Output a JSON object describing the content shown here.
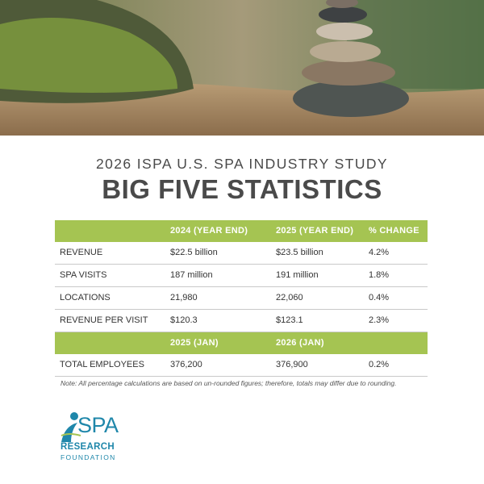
{
  "header": {
    "subtitle": "2026 ISPA U.S. SPA INDUSTRY STUDY",
    "title": "BIG FIVE STATISTICS"
  },
  "table": {
    "header": [
      "2024 (YEAR END)",
      "2025 (YEAR END)",
      "% CHANGE"
    ],
    "rows": [
      [
        "REVENUE",
        "$22.5 billion",
        "$23.5 billion",
        "4.2%"
      ],
      [
        "SPA VISITS",
        "187 million",
        "191 million",
        "1.8%"
      ],
      [
        "LOCATIONS",
        "21,980",
        "22,060",
        "0.4%"
      ],
      [
        "REVENUE PER VISIT",
        "$120.3",
        "$123.1",
        "2.3%"
      ]
    ],
    "header2": [
      "2025 (JAN)",
      "2026 (JAN)"
    ],
    "rows2": [
      [
        "TOTAL EMPLOYEES",
        "376,200",
        "376,900",
        "0.2%"
      ]
    ]
  },
  "note": "Note: All percentage calculations are based on un-rounded figures; therefore, totals may differ due to rounding.",
  "logo": {
    "name": "SPA",
    "line1": "RESEARCH",
    "line2": "FOUNDATION"
  }
}
